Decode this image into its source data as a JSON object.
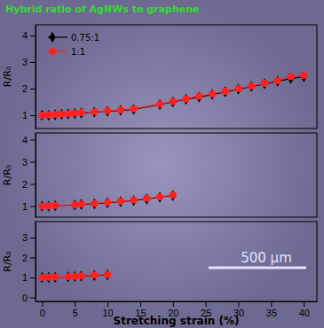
{
  "chart_data": [
    {
      "type": "line",
      "title": "Hybrid ratio of AgNWs to graphene",
      "y_label": "R/R₀",
      "x": [
        0,
        1,
        2,
        3,
        4,
        5,
        6,
        8,
        10,
        12,
        14,
        18,
        20,
        22,
        24,
        26,
        28,
        30,
        32,
        34,
        36,
        38,
        40
      ],
      "series": [
        {
          "name": "0.75:1",
          "color": "#000000",
          "marker": "diamond",
          "values": [
            1.0,
            1.0,
            1.02,
            1.03,
            1.05,
            1.07,
            1.08,
            1.12,
            1.15,
            1.18,
            1.22,
            1.4,
            1.5,
            1.6,
            1.68,
            1.78,
            1.88,
            1.98,
            2.08,
            2.18,
            2.28,
            2.38,
            2.45
          ]
        },
        {
          "name": "1:1",
          "color": "#ff2020",
          "marker": "circle",
          "values": [
            1.0,
            1.02,
            1.03,
            1.04,
            1.06,
            1.08,
            1.1,
            1.13,
            1.17,
            1.2,
            1.24,
            1.42,
            1.52,
            1.62,
            1.72,
            1.8,
            1.9,
            2.0,
            2.1,
            2.2,
            2.3,
            2.45,
            2.5
          ]
        }
      ],
      "xlim": [
        -1,
        42
      ],
      "ylim": [
        0.5,
        4.4
      ],
      "yticks": [
        1,
        2,
        3,
        4
      ],
      "legend": "upper left",
      "tick_labels": "y"
    },
    {
      "type": "line",
      "y_label": "R/R₀",
      "x": [
        0,
        1,
        2,
        5,
        6,
        8,
        10,
        12,
        14,
        16,
        18,
        20
      ],
      "series": [
        {
          "color": "#000000",
          "marker": "diamond",
          "values": [
            1.0,
            1.0,
            1.02,
            1.05,
            1.08,
            1.1,
            1.15,
            1.2,
            1.25,
            1.32,
            1.4,
            1.48
          ]
        },
        {
          "color": "#ff2020",
          "marker": "circle",
          "values": [
            1.0,
            1.01,
            1.03,
            1.06,
            1.09,
            1.12,
            1.17,
            1.22,
            1.28,
            1.35,
            1.42,
            1.5
          ]
        }
      ],
      "xlim": [
        -1,
        42
      ],
      "ylim": [
        0.5,
        4.3
      ],
      "yticks": [
        1,
        2,
        3,
        4
      ],
      "tick_labels": "y"
    },
    {
      "type": "line",
      "y_label": "R/R₀",
      "x_label": "Stretching strain (%)",
      "annotations": [
        "500 μm"
      ],
      "x": [
        0,
        1,
        2,
        4,
        5,
        6,
        8,
        10
      ],
      "series": [
        {
          "color": "#000000",
          "marker": "diamond",
          "values": [
            1.0,
            1.0,
            1.01,
            1.03,
            1.05,
            1.07,
            1.1,
            1.13
          ]
        },
        {
          "color": "#ff2020",
          "marker": "circle",
          "values": [
            1.0,
            1.01,
            1.02,
            1.04,
            1.06,
            1.08,
            1.12,
            1.15
          ]
        }
      ],
      "xlim": [
        -1,
        42
      ],
      "ylim": [
        -0.2,
        3.8
      ],
      "yticks": [
        0,
        1,
        2,
        3
      ],
      "xticks": [
        0,
        5,
        10,
        15,
        20,
        25,
        30,
        35,
        40
      ]
    }
  ]
}
